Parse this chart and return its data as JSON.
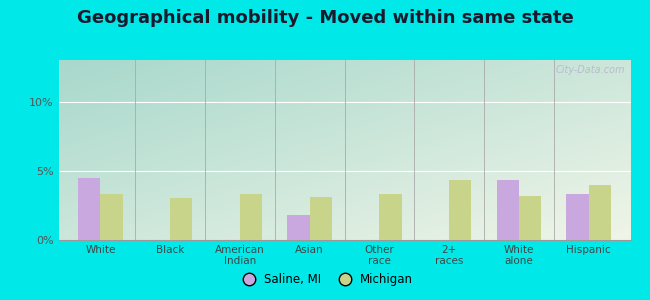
{
  "title": "Geographical mobility - Moved within same state",
  "categories": [
    "White",
    "Black",
    "American\nIndian",
    "Asian",
    "Other\nrace",
    "2+\nraces",
    "White\nalone",
    "Hispanic"
  ],
  "saline_values": [
    4.5,
    0.0,
    0.0,
    1.8,
    0.0,
    0.0,
    4.3,
    3.3
  ],
  "michigan_values": [
    3.3,
    3.0,
    3.3,
    3.1,
    3.3,
    4.3,
    3.2,
    4.0
  ],
  "saline_color": "#c9a8e0",
  "michigan_color": "#c8d48a",
  "bar_width": 0.32,
  "ylim": [
    0,
    13
  ],
  "yticks": [
    0,
    5,
    10
  ],
  "ytick_labels": [
    "0%",
    "5%",
    "10%"
  ],
  "grad_top_left": "#a8d8cc",
  "grad_bottom_right": "#f0f5e8",
  "outer_background": "#00e8e8",
  "title_fontsize": 13,
  "legend_saline": "Saline, MI",
  "legend_michigan": "Michigan",
  "axis_bg": "#e8f5e8"
}
